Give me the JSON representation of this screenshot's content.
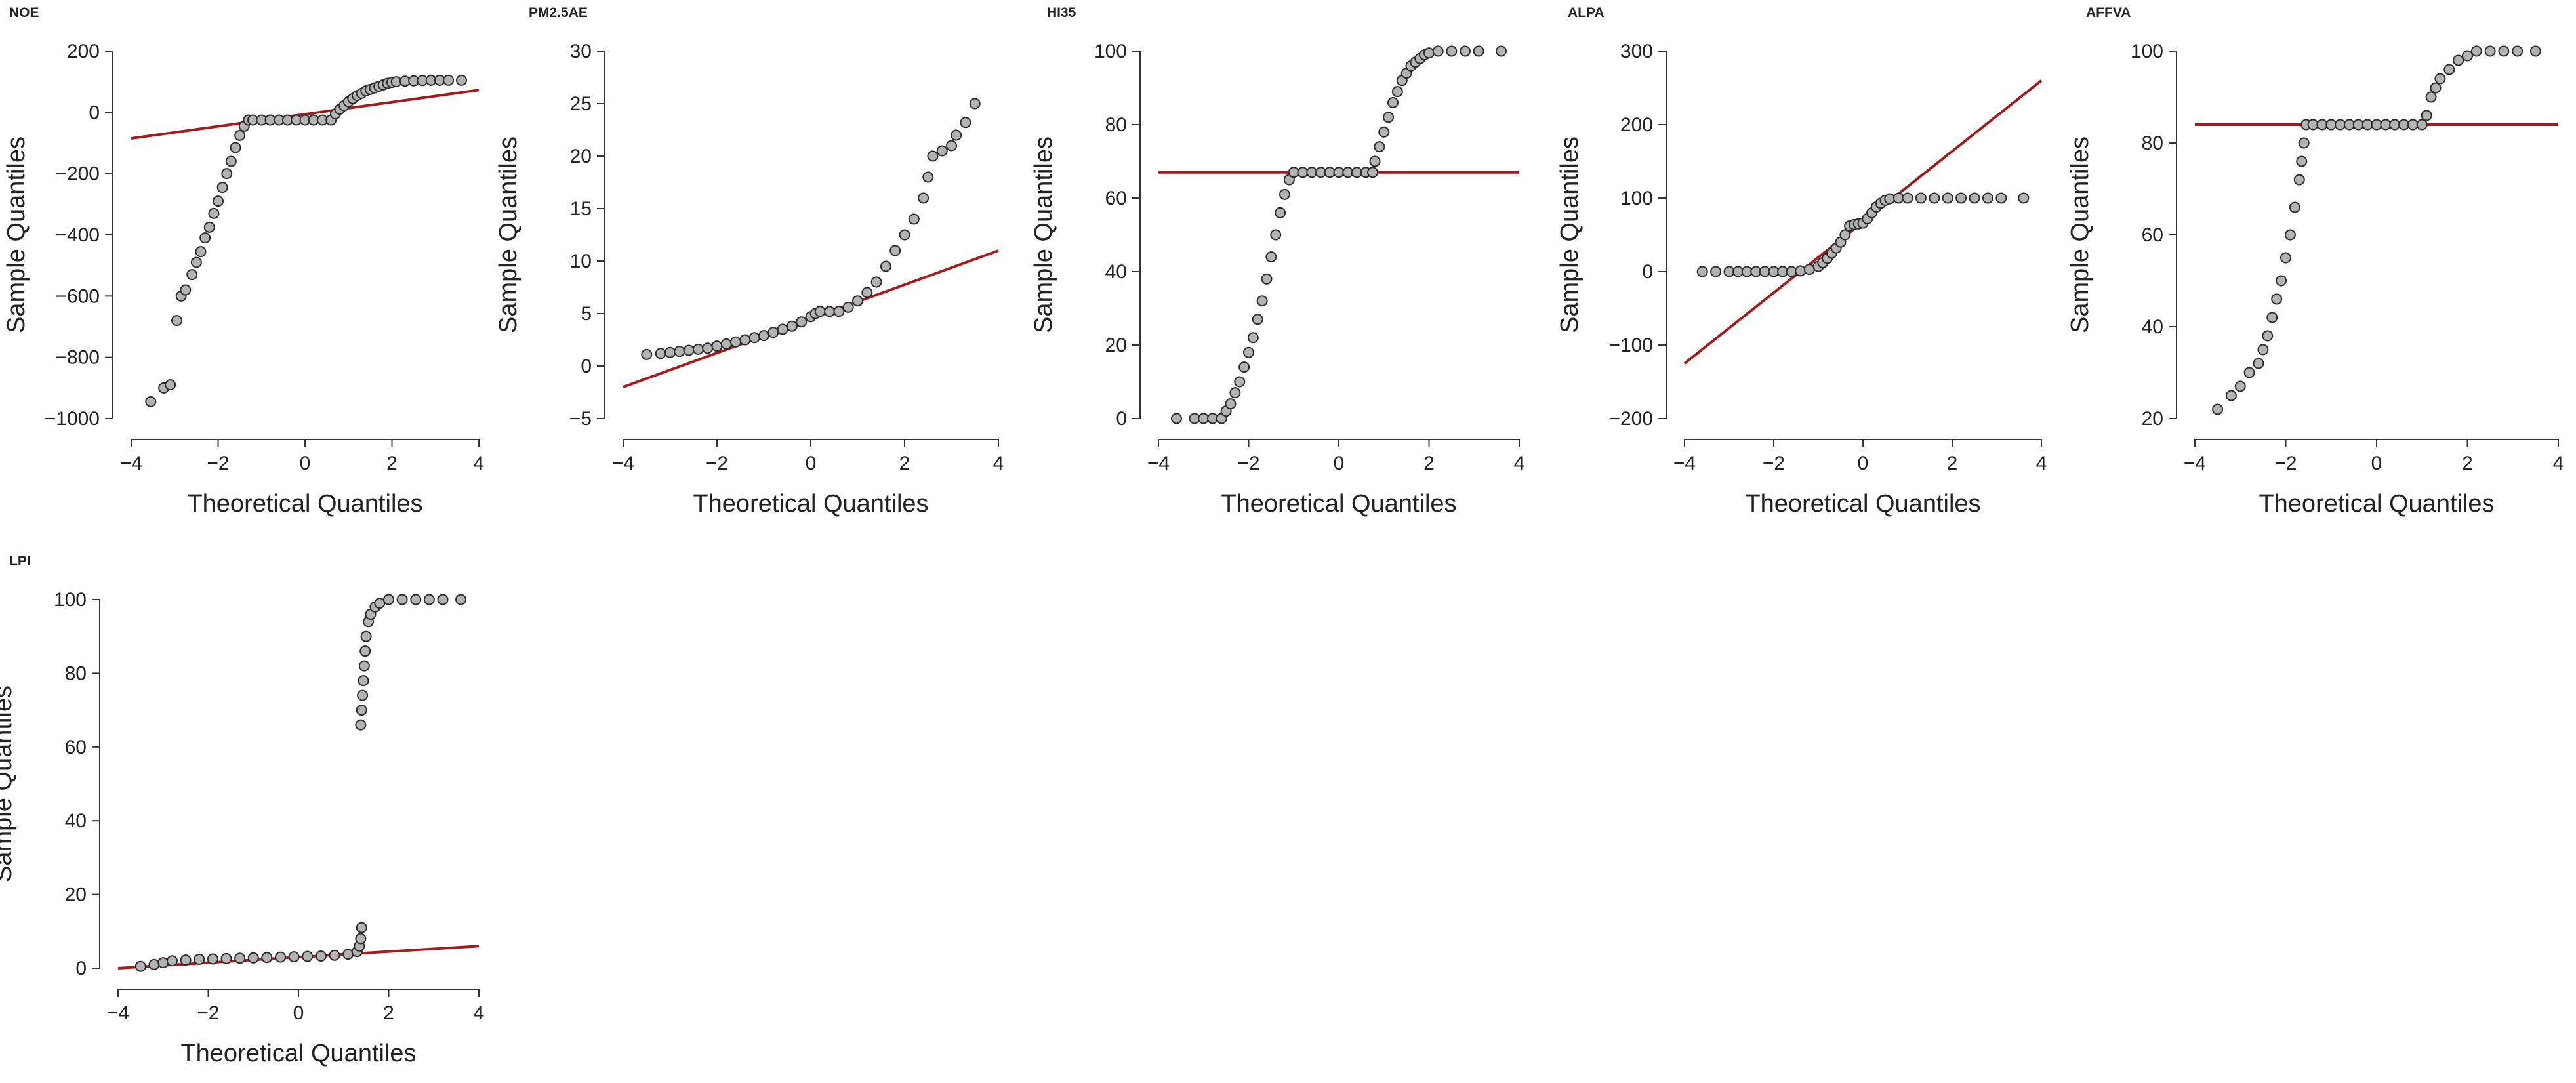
{
  "colors": {
    "reference_line": "#a31c1c",
    "point_fill": "#b3b3b3",
    "point_stroke": "#2b2b2b",
    "axis": "#333333",
    "text": "#222222"
  },
  "chart_data": [
    {
      "type": "scatter",
      "title": "NOE",
      "xlabel": "Theoretical Quantiles",
      "ylabel": "Sample Quantiles",
      "xlim": [
        -4,
        4
      ],
      "ylim": [
        -1000,
        200
      ],
      "xticks": [
        -4,
        -2,
        0,
        2,
        4
      ],
      "xtick_labels": [
        "−4",
        "−2",
        "0",
        "2",
        "4"
      ],
      "yticks": [
        -1000,
        -800,
        -600,
        -400,
        -200,
        0,
        200
      ],
      "ytick_labels": [
        "−1000",
        "−800",
        "−600",
        "−400",
        "−200",
        "0",
        "200"
      ],
      "reference_line": [
        [
          -4,
          -85
        ],
        [
          4,
          73
        ]
      ],
      "points": [
        [
          -3.55,
          -945
        ],
        [
          -3.25,
          -900
        ],
        [
          -3.1,
          -890
        ],
        [
          -2.95,
          -680
        ],
        [
          -2.85,
          -600
        ],
        [
          -2.75,
          -580
        ],
        [
          -2.6,
          -530
        ],
        [
          -2.5,
          -490
        ],
        [
          -2.4,
          -455
        ],
        [
          -2.3,
          -410
        ],
        [
          -2.2,
          -375
        ],
        [
          -2.1,
          -330
        ],
        [
          -2.0,
          -290
        ],
        [
          -1.9,
          -245
        ],
        [
          -1.8,
          -200
        ],
        [
          -1.7,
          -160
        ],
        [
          -1.6,
          -115
        ],
        [
          -1.5,
          -75
        ],
        [
          -1.4,
          -45
        ],
        [
          -1.3,
          -25
        ],
        [
          -1.2,
          -25
        ],
        [
          -1.0,
          -25
        ],
        [
          -0.8,
          -25
        ],
        [
          -0.6,
          -25
        ],
        [
          -0.4,
          -25
        ],
        [
          -0.2,
          -25
        ],
        [
          0.0,
          -25
        ],
        [
          0.2,
          -25
        ],
        [
          0.4,
          -25
        ],
        [
          0.6,
          -25
        ],
        [
          0.7,
          -5
        ],
        [
          0.8,
          10
        ],
        [
          0.9,
          22
        ],
        [
          1.0,
          35
        ],
        [
          1.1,
          45
        ],
        [
          1.2,
          55
        ],
        [
          1.3,
          62
        ],
        [
          1.4,
          70
        ],
        [
          1.5,
          75
        ],
        [
          1.6,
          80
        ],
        [
          1.7,
          85
        ],
        [
          1.8,
          90
        ],
        [
          1.9,
          95
        ],
        [
          2.0,
          98
        ],
        [
          2.1,
          100
        ],
        [
          2.3,
          102
        ],
        [
          2.5,
          103
        ],
        [
          2.7,
          104
        ],
        [
          2.9,
          105
        ],
        [
          3.1,
          105
        ],
        [
          3.3,
          105
        ],
        [
          3.6,
          105
        ]
      ]
    },
    {
      "type": "scatter",
      "title": "PM2.5AE",
      "xlabel": "Theoretical Quantiles",
      "ylabel": "Sample Quantiles",
      "xlim": [
        -4,
        4
      ],
      "ylim": [
        -5,
        30
      ],
      "xticks": [
        -4,
        -2,
        0,
        2,
        4
      ],
      "xtick_labels": [
        "−4",
        "−2",
        "0",
        "2",
        "4"
      ],
      "yticks": [
        -5,
        0,
        5,
        10,
        15,
        20,
        25,
        30
      ],
      "ytick_labels": [
        "−5",
        "0",
        "5",
        "10",
        "15",
        "20",
        "25",
        "30"
      ],
      "reference_line": [
        [
          -4,
          -2
        ],
        [
          4,
          11
        ]
      ],
      "points": [
        [
          -3.5,
          1.1
        ],
        [
          -3.2,
          1.2
        ],
        [
          -3.0,
          1.3
        ],
        [
          -2.8,
          1.4
        ],
        [
          -2.6,
          1.5
        ],
        [
          -2.4,
          1.6
        ],
        [
          -2.2,
          1.7
        ],
        [
          -2.0,
          1.9
        ],
        [
          -1.8,
          2.1
        ],
        [
          -1.6,
          2.3
        ],
        [
          -1.4,
          2.5
        ],
        [
          -1.2,
          2.7
        ],
        [
          -1.0,
          2.9
        ],
        [
          -0.8,
          3.2
        ],
        [
          -0.6,
          3.5
        ],
        [
          -0.4,
          3.8
        ],
        [
          -0.2,
          4.2
        ],
        [
          0.0,
          4.7
        ],
        [
          0.1,
          5.0
        ],
        [
          0.2,
          5.2
        ],
        [
          0.4,
          5.2
        ],
        [
          0.6,
          5.2
        ],
        [
          0.8,
          5.6
        ],
        [
          1.0,
          6.2
        ],
        [
          1.2,
          7.0
        ],
        [
          1.4,
          8.0
        ],
        [
          1.6,
          9.5
        ],
        [
          1.8,
          11.0
        ],
        [
          2.0,
          12.5
        ],
        [
          2.2,
          14.0
        ],
        [
          2.4,
          16.0
        ],
        [
          2.5,
          18.0
        ],
        [
          2.6,
          20.0
        ],
        [
          2.8,
          20.5
        ],
        [
          3.0,
          21.0
        ],
        [
          3.1,
          22.0
        ],
        [
          3.3,
          23.2
        ],
        [
          3.5,
          25.0
        ]
      ]
    },
    {
      "type": "scatter",
      "title": "HI35",
      "xlabel": "Theoretical Quantiles",
      "ylabel": "Sample Quantiles",
      "xlim": [
        -4,
        4
      ],
      "ylim": [
        0,
        100
      ],
      "xticks": [
        -4,
        -2,
        0,
        2,
        4
      ],
      "xtick_labels": [
        "−4",
        "−2",
        "0",
        "2",
        "4"
      ],
      "yticks": [
        0,
        20,
        40,
        60,
        80,
        100
      ],
      "ytick_labels": [
        "0",
        "20",
        "40",
        "60",
        "80",
        "100"
      ],
      "reference_line": [
        [
          -4,
          67
        ],
        [
          4,
          67
        ]
      ],
      "points": [
        [
          -3.6,
          0
        ],
        [
          -3.2,
          0
        ],
        [
          -3.0,
          0
        ],
        [
          -2.8,
          0
        ],
        [
          -2.6,
          0
        ],
        [
          -2.5,
          2
        ],
        [
          -2.4,
          4
        ],
        [
          -2.3,
          7
        ],
        [
          -2.2,
          10
        ],
        [
          -2.1,
          14
        ],
        [
          -2.0,
          18
        ],
        [
          -1.9,
          22
        ],
        [
          -1.8,
          27
        ],
        [
          -1.7,
          32
        ],
        [
          -1.6,
          38
        ],
        [
          -1.5,
          44
        ],
        [
          -1.4,
          50
        ],
        [
          -1.3,
          56
        ],
        [
          -1.2,
          61
        ],
        [
          -1.1,
          65
        ],
        [
          -1.0,
          67
        ],
        [
          -0.8,
          67
        ],
        [
          -0.6,
          67
        ],
        [
          -0.4,
          67
        ],
        [
          -0.2,
          67
        ],
        [
          0.0,
          67
        ],
        [
          0.2,
          67
        ],
        [
          0.4,
          67
        ],
        [
          0.6,
          67
        ],
        [
          0.75,
          67
        ],
        [
          0.8,
          70
        ],
        [
          0.9,
          74
        ],
        [
          1.0,
          78
        ],
        [
          1.1,
          82
        ],
        [
          1.2,
          86
        ],
        [
          1.3,
          89
        ],
        [
          1.4,
          92
        ],
        [
          1.5,
          94
        ],
        [
          1.6,
          96
        ],
        [
          1.7,
          97
        ],
        [
          1.8,
          98
        ],
        [
          1.9,
          99
        ],
        [
          2.0,
          99.5
        ],
        [
          2.2,
          100
        ],
        [
          2.5,
          100
        ],
        [
          2.8,
          100
        ],
        [
          3.1,
          100
        ],
        [
          3.6,
          100
        ]
      ]
    },
    {
      "type": "scatter",
      "title": "ALPA",
      "xlabel": "Theoretical Quantiles",
      "ylabel": "Sample Quantiles",
      "xlim": [
        -4,
        4
      ],
      "ylim": [
        -200,
        300
      ],
      "xticks": [
        -4,
        -2,
        0,
        2,
        4
      ],
      "xtick_labels": [
        "−4",
        "−2",
        "0",
        "2",
        "4"
      ],
      "yticks": [
        -200,
        -100,
        0,
        100,
        200,
        300
      ],
      "ytick_labels": [
        "−200",
        "−100",
        "0",
        "100",
        "200",
        "300"
      ],
      "reference_line": [
        [
          -4,
          -125
        ],
        [
          4,
          260
        ]
      ],
      "points": [
        [
          -3.6,
          0
        ],
        [
          -3.3,
          0
        ],
        [
          -3.0,
          0
        ],
        [
          -2.8,
          0
        ],
        [
          -2.6,
          0
        ],
        [
          -2.4,
          0
        ],
        [
          -2.2,
          0
        ],
        [
          -2.0,
          0
        ],
        [
          -1.8,
          0
        ],
        [
          -1.6,
          0
        ],
        [
          -1.4,
          1
        ],
        [
          -1.2,
          3
        ],
        [
          -1.0,
          7
        ],
        [
          -0.9,
          12
        ],
        [
          -0.8,
          18
        ],
        [
          -0.7,
          25
        ],
        [
          -0.6,
          32
        ],
        [
          -0.5,
          40
        ],
        [
          -0.4,
          50
        ],
        [
          -0.3,
          62
        ],
        [
          -0.2,
          64
        ],
        [
          -0.1,
          65
        ],
        [
          0.0,
          66
        ],
        [
          0.1,
          72
        ],
        [
          0.2,
          80
        ],
        [
          0.3,
          88
        ],
        [
          0.4,
          93
        ],
        [
          0.5,
          97
        ],
        [
          0.6,
          99
        ],
        [
          0.8,
          100
        ],
        [
          1.0,
          100
        ],
        [
          1.3,
          100
        ],
        [
          1.6,
          100
        ],
        [
          1.9,
          100
        ],
        [
          2.2,
          100
        ],
        [
          2.5,
          100
        ],
        [
          2.8,
          100
        ],
        [
          3.1,
          100
        ],
        [
          3.6,
          100
        ]
      ]
    },
    {
      "type": "scatter",
      "title": "AFFVA",
      "xlabel": "Theoretical Quantiles",
      "ylabel": "Sample Quantiles",
      "xlim": [
        -4,
        4
      ],
      "ylim": [
        20,
        100
      ],
      "xticks": [
        -4,
        -2,
        0,
        2,
        4
      ],
      "xtick_labels": [
        "−4",
        "−2",
        "0",
        "2",
        "4"
      ],
      "yticks": [
        20,
        40,
        60,
        80,
        100
      ],
      "ytick_labels": [
        "20",
        "40",
        "60",
        "80",
        "100"
      ],
      "reference_line": [
        [
          -4,
          84
        ],
        [
          4,
          84
        ]
      ],
      "points": [
        [
          -3.5,
          22
        ],
        [
          -3.2,
          25
        ],
        [
          -3.0,
          27
        ],
        [
          -2.8,
          30
        ],
        [
          -2.6,
          32
        ],
        [
          -2.5,
          35
        ],
        [
          -2.4,
          38
        ],
        [
          -2.3,
          42
        ],
        [
          -2.2,
          46
        ],
        [
          -2.1,
          50
        ],
        [
          -2.0,
          55
        ],
        [
          -1.9,
          60
        ],
        [
          -1.8,
          66
        ],
        [
          -1.7,
          72
        ],
        [
          -1.65,
          76
        ],
        [
          -1.6,
          80
        ],
        [
          -1.55,
          84
        ],
        [
          -1.4,
          84
        ],
        [
          -1.2,
          84
        ],
        [
          -1.0,
          84
        ],
        [
          -0.8,
          84
        ],
        [
          -0.6,
          84
        ],
        [
          -0.4,
          84
        ],
        [
          -0.2,
          84
        ],
        [
          0.0,
          84
        ],
        [
          0.2,
          84
        ],
        [
          0.4,
          84
        ],
        [
          0.6,
          84
        ],
        [
          0.8,
          84
        ],
        [
          1.0,
          84
        ],
        [
          1.1,
          86
        ],
        [
          1.2,
          90
        ],
        [
          1.3,
          92
        ],
        [
          1.4,
          94
        ],
        [
          1.6,
          96
        ],
        [
          1.8,
          98
        ],
        [
          2.0,
          99
        ],
        [
          2.2,
          100
        ],
        [
          2.5,
          100
        ],
        [
          2.8,
          100
        ],
        [
          3.1,
          100
        ],
        [
          3.5,
          100
        ]
      ]
    },
    {
      "type": "scatter",
      "title": "LPI",
      "xlabel": "Theoretical Quantiles",
      "ylabel": "Sample Quantiles",
      "xlim": [
        -4,
        4
      ],
      "ylim": [
        0,
        100
      ],
      "xticks": [
        -4,
        -2,
        0,
        2,
        4
      ],
      "xtick_labels": [
        "−4",
        "−2",
        "0",
        "2",
        "4"
      ],
      "yticks": [
        0,
        20,
        40,
        60,
        80,
        100
      ],
      "ytick_labels": [
        "0",
        "20",
        "40",
        "60",
        "80",
        "100"
      ],
      "reference_line": [
        [
          -4,
          0
        ],
        [
          4,
          6
        ]
      ],
      "points": [
        [
          -3.5,
          0.5
        ],
        [
          -3.2,
          1
        ],
        [
          -3.0,
          1.5
        ],
        [
          -2.8,
          2
        ],
        [
          -2.5,
          2.2
        ],
        [
          -2.2,
          2.4
        ],
        [
          -1.9,
          2.5
        ],
        [
          -1.6,
          2.6
        ],
        [
          -1.3,
          2.7
        ],
        [
          -1.0,
          2.8
        ],
        [
          -0.7,
          2.9
        ],
        [
          -0.4,
          3
        ],
        [
          -0.1,
          3.1
        ],
        [
          0.2,
          3.2
        ],
        [
          0.5,
          3.3
        ],
        [
          0.8,
          3.5
        ],
        [
          1.1,
          3.8
        ],
        [
          1.3,
          4.5
        ],
        [
          1.35,
          6
        ],
        [
          1.38,
          8
        ],
        [
          1.4,
          11
        ],
        [
          1.38,
          66
        ],
        [
          1.4,
          70
        ],
        [
          1.42,
          74
        ],
        [
          1.44,
          78
        ],
        [
          1.46,
          82
        ],
        [
          1.48,
          86
        ],
        [
          1.5,
          90
        ],
        [
          1.55,
          94
        ],
        [
          1.6,
          96
        ],
        [
          1.7,
          98
        ],
        [
          1.8,
          99
        ],
        [
          2.0,
          100
        ],
        [
          2.3,
          100
        ],
        [
          2.6,
          100
        ],
        [
          2.9,
          100
        ],
        [
          3.2,
          100
        ],
        [
          3.6,
          100
        ]
      ]
    }
  ]
}
